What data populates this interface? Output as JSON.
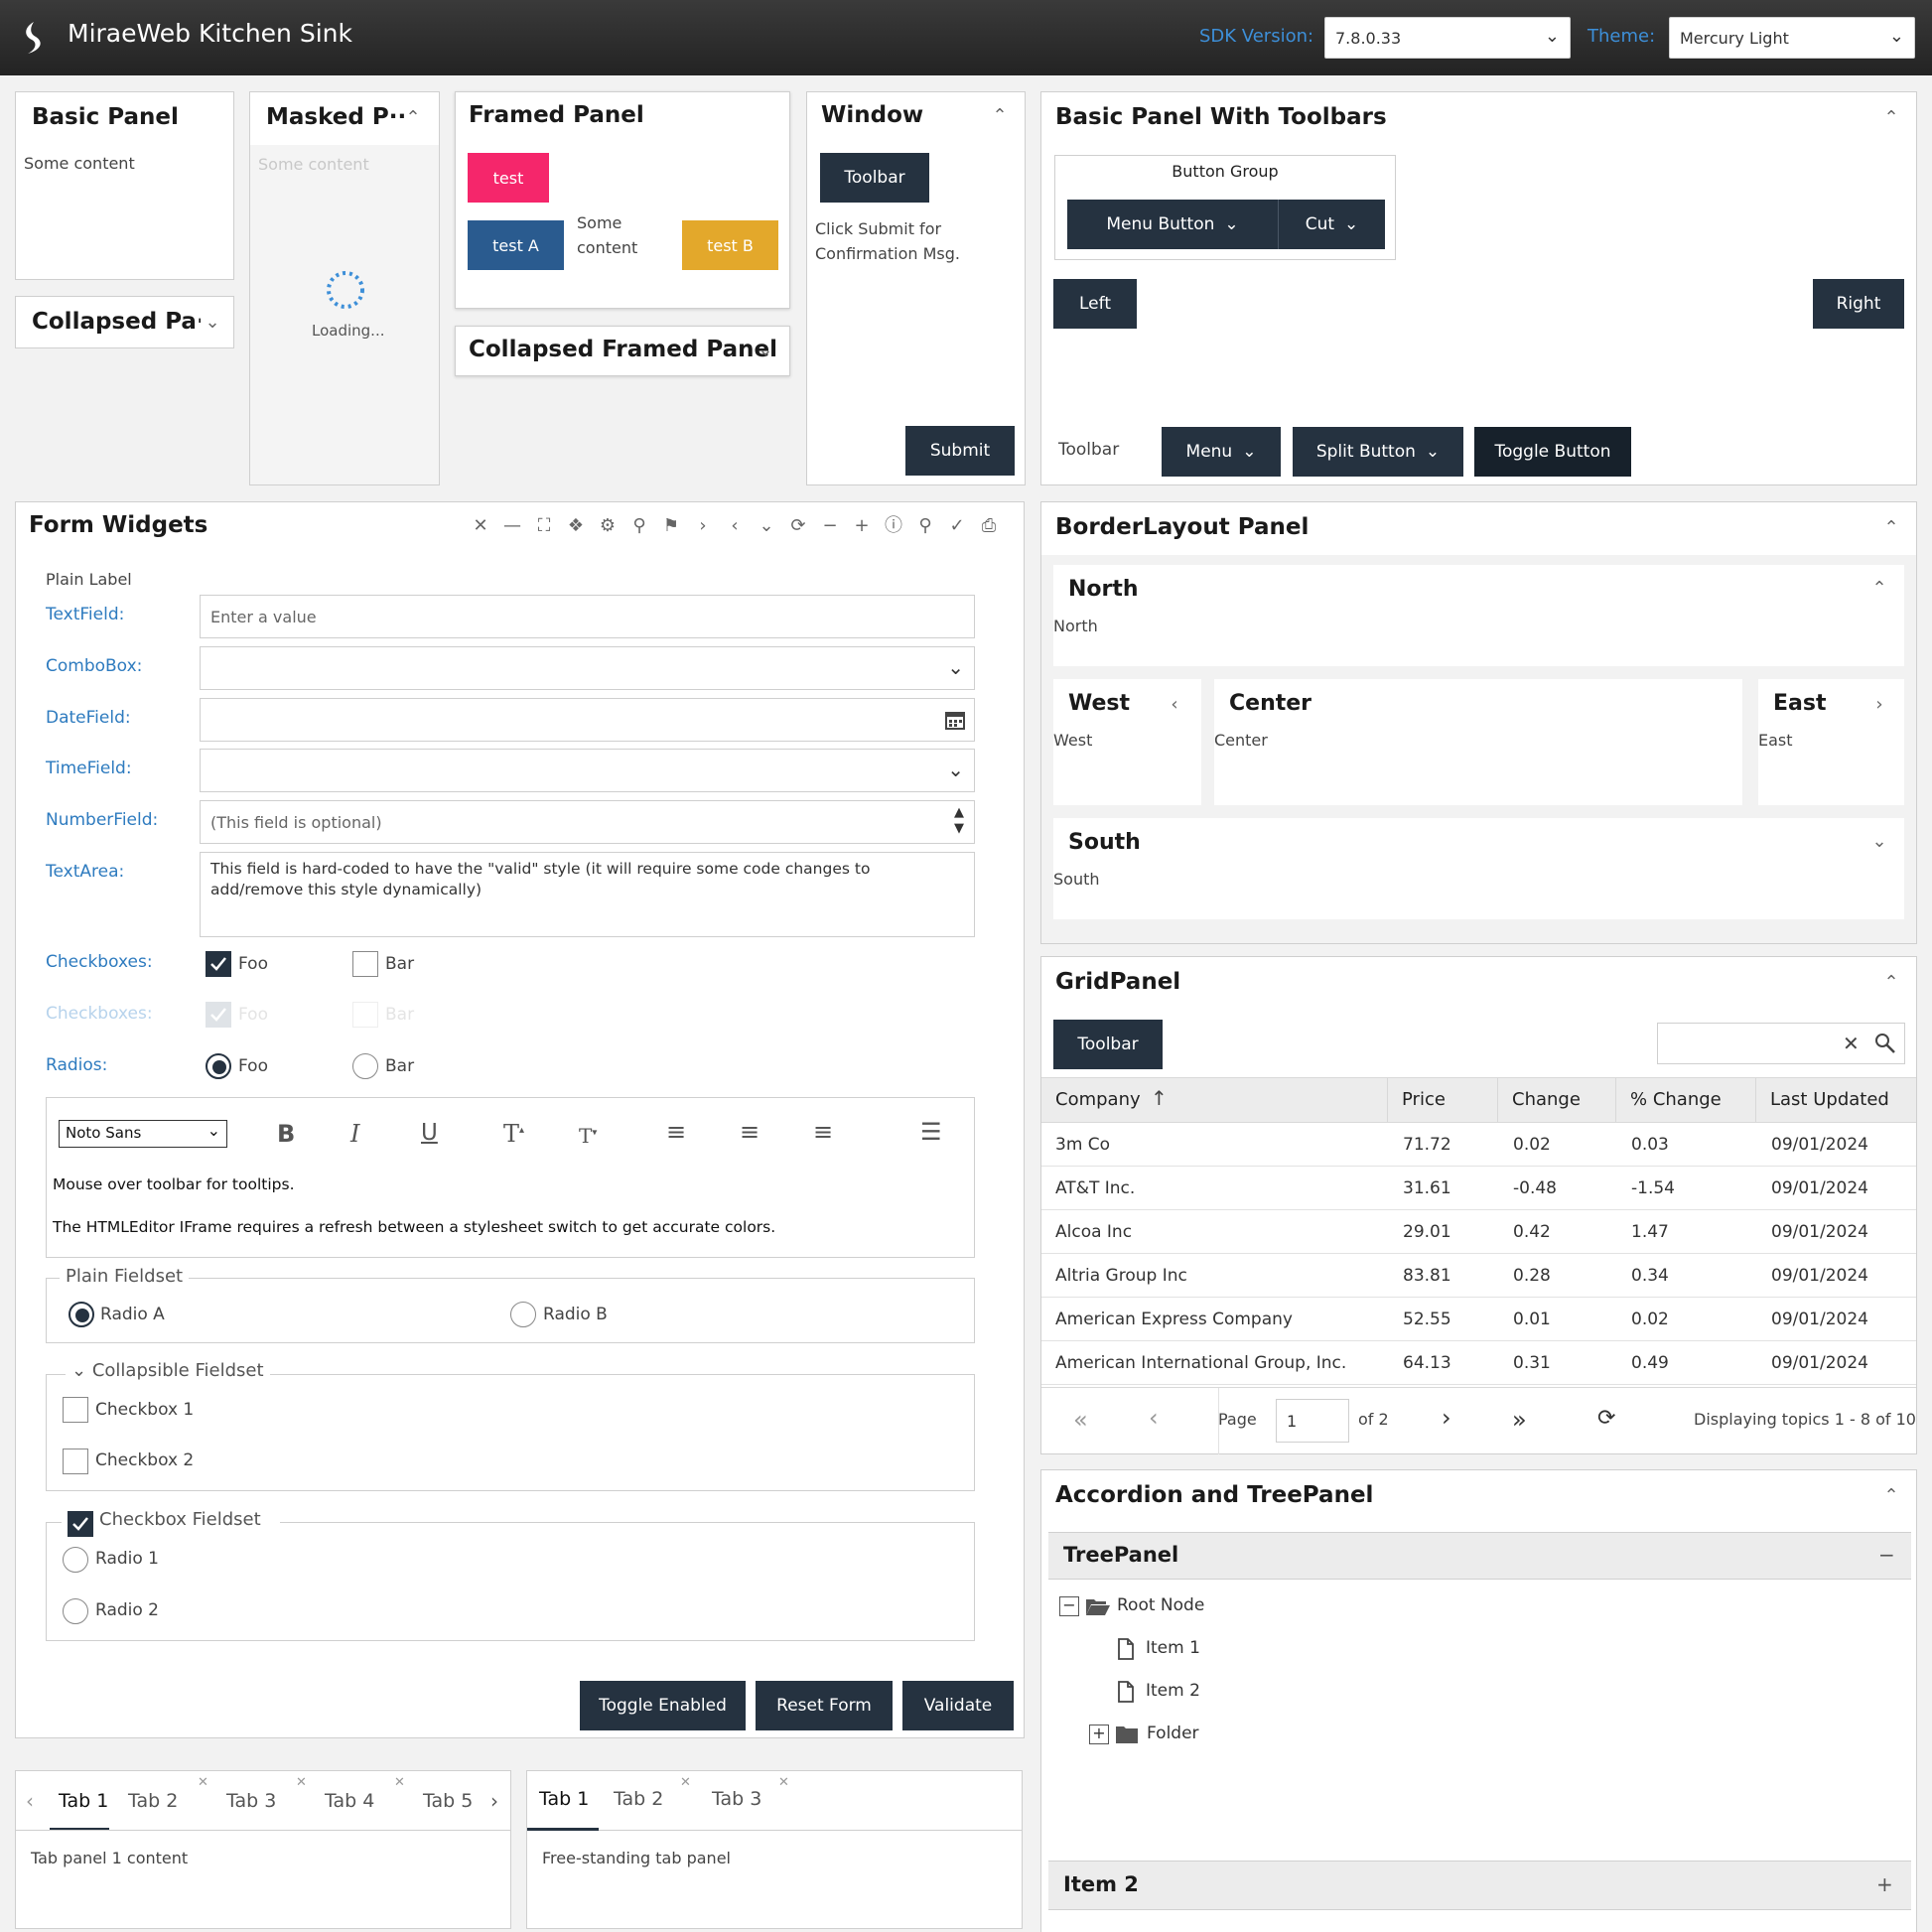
{
  "header": {
    "app_title": "MiraeWeb Kitchen Sink",
    "sdk_label": "SDK Version:",
    "sdk_value": "7.8.0.33",
    "theme_label": "Theme:",
    "theme_value": "Mercury Light"
  },
  "basic_panel": {
    "title": "Basic Panel",
    "content": "Some content"
  },
  "collapsed_panel": {
    "title": "Collapsed Pa···"
  },
  "masked_panel": {
    "title": "Masked P···",
    "content": "Some content",
    "loading": "Loading..."
  },
  "framed_panel": {
    "title": "Framed Panel",
    "btn_test": "test",
    "btn_test_a": "test A",
    "content_line1": "Some",
    "content_line2": "content",
    "btn_test_b": "test B"
  },
  "collapsed_framed_panel": {
    "title": "Collapsed Framed Panel"
  },
  "window_panel": {
    "title": "Window",
    "toolbar_btn": "Toolbar",
    "msg_line1": "Click Submit for",
    "msg_line2": "Confirmation Msg.",
    "submit": "Submit"
  },
  "toolbar_panel": {
    "title": "Basic Panel With Toolbars",
    "button_group": "Button Group",
    "menu_button": "Menu Button",
    "cut": "Cut",
    "left": "Left",
    "right": "Right",
    "toolbar_label": "Toolbar",
    "menu": "Menu",
    "split_button": "Split Button",
    "toggle_button": "Toggle Button"
  },
  "form": {
    "title": "Form Widgets",
    "plain_label": "Plain Label",
    "textfield_label": "TextField:",
    "textfield_placeholder": "Enter a value",
    "combobox_label": "ComboBox:",
    "datefield_label": "DateField:",
    "timefield_label": "TimeField:",
    "numberfield_label": "NumberField:",
    "numberfield_placeholder": "(This field is optional)",
    "textarea_label": "TextArea:",
    "textarea_value": "This field is hard-coded to have the \"valid\" style (it will require some code changes to add/remove this style dynamically)",
    "checkboxes_label": "Checkboxes:",
    "checkboxes_disabled_label": "Checkboxes:",
    "radios_label": "Radios:",
    "foo": "Foo",
    "bar": "Bar",
    "font_select": "Noto Sans",
    "editor_line1": "Mouse over toolbar for tooltips.",
    "editor_line2": "The HTMLEditor IFrame requires a refresh between a stylesheet switch to get accurate colors.",
    "plain_fieldset": "Plain Fieldset",
    "radio_a": "Radio A",
    "radio_b": "Radio B",
    "collapsible_fieldset": "Collapsible Fieldset",
    "checkbox_1": "Checkbox 1",
    "checkbox_2": "Checkbox 2",
    "checkbox_fieldset": "Checkbox Fieldset",
    "radio_1": "Radio 1",
    "radio_2": "Radio 2",
    "toggle_enabled": "Toggle Enabled",
    "reset_form": "Reset Form",
    "validate": "Validate"
  },
  "tabs1": {
    "tabs": [
      "Tab 1",
      "Tab 2",
      "Tab 3",
      "Tab 4",
      "Tab 5"
    ],
    "content": "Tab panel 1 content"
  },
  "tabs2": {
    "tabs": [
      "Tab 1",
      "Tab 2",
      "Tab 3"
    ],
    "content": "Free-standing tab panel"
  },
  "border_layout": {
    "title": "BorderLayout Panel",
    "north_title": "North",
    "north_content": "North",
    "west_title": "West",
    "west_content": "West",
    "center_title": "Center",
    "center_content": "Center",
    "east_title": "East",
    "east_content": "East",
    "south_title": "South",
    "south_content": "South"
  },
  "grid": {
    "title": "GridPanel",
    "toolbar_btn": "Toolbar",
    "columns": [
      "Company",
      "Price",
      "Change",
      "% Change",
      "Last Updated"
    ],
    "rows": [
      [
        "3m Co",
        "71.72",
        "0.02",
        "0.03",
        "09/01/2024"
      ],
      [
        "AT&T Inc.",
        "31.61",
        "-0.48",
        "-1.54",
        "09/01/2024"
      ],
      [
        "Alcoa Inc",
        "29.01",
        "0.42",
        "1.47",
        "09/01/2024"
      ],
      [
        "Altria Group Inc",
        "83.81",
        "0.28",
        "0.34",
        "09/01/2024"
      ],
      [
        "American Express Company",
        "52.55",
        "0.01",
        "0.02",
        "09/01/2024"
      ],
      [
        "American International Group, Inc.",
        "64.13",
        "0.31",
        "0.49",
        "09/01/2024"
      ]
    ],
    "page_label": "Page",
    "page_value": "1",
    "of_pages": "of 2",
    "display_msg": "Displaying topics 1 - 8 of 10"
  },
  "accordion": {
    "title": "Accordion and TreePanel",
    "tree_title": "TreePanel",
    "root": "Root Node",
    "item1": "Item 1",
    "item2": "Item 2",
    "folder": "Folder",
    "item2_header": "Item 2"
  },
  "colors": {
    "accent": "#253240",
    "label": "#2e7bbf",
    "pink": "#f5266b",
    "blue": "#2a5b8f",
    "gold": "#e3a82b"
  }
}
